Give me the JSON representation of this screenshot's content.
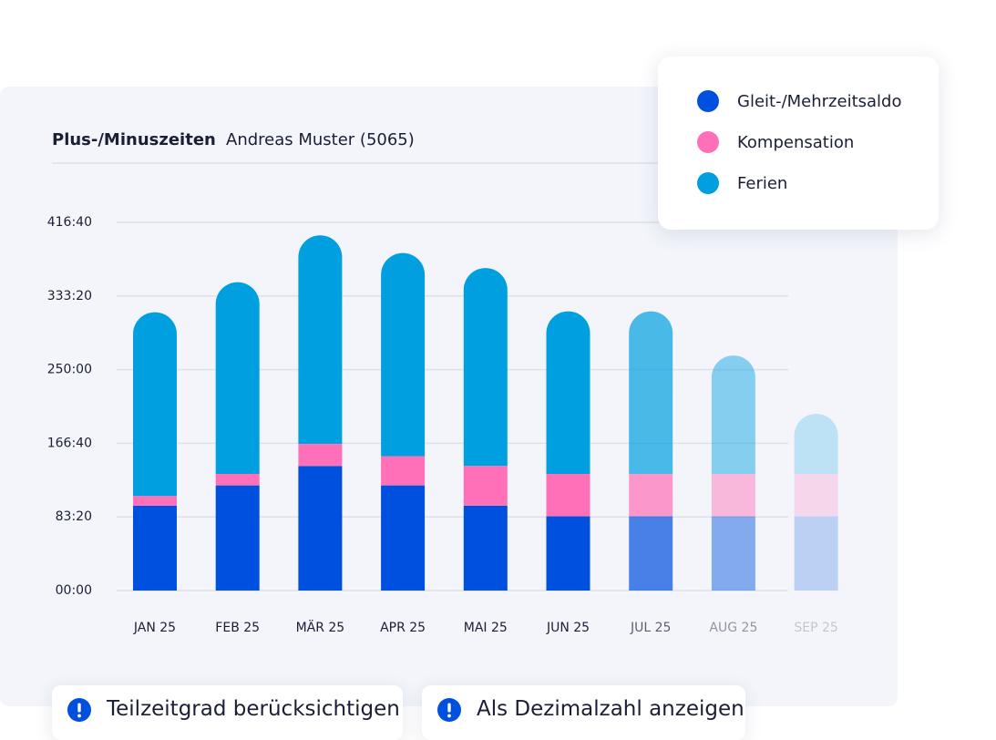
{
  "header": {
    "title": "Plus-/Minuszeiten",
    "person": "Andreas Muster (5065)"
  },
  "chart_data": {
    "type": "stacked_bar",
    "categories": [
      "JAN 25",
      "FEB 25",
      "MÄR 25",
      "APR 25",
      "MAI 25",
      "JUN 25",
      "JUL 25",
      "AUG 25",
      "SEP 25"
    ],
    "series": [
      {
        "name": "Gleit-/Mehrzeitsaldo",
        "color": "#0050e0",
        "values": [
          96,
          119,
          141,
          119,
          96,
          84,
          84,
          84,
          84
        ]
      },
      {
        "name": "Kompensation",
        "color": "#ff70b8",
        "values": [
          11,
          13,
          25,
          33,
          45,
          48,
          48,
          48,
          48
        ]
      },
      {
        "name": "Ferien",
        "color": "#00a0e0",
        "values": [
          208,
          217,
          236,
          230,
          224,
          184,
          184,
          134,
          68
        ]
      }
    ],
    "ylim": [
      0,
      416.67
    ],
    "yticks": [
      {
        "value": 0,
        "label": "00:00"
      },
      {
        "value": 83.33,
        "label": "83:20"
      },
      {
        "value": 166.67,
        "label": "166:40"
      },
      {
        "value": 250,
        "label": "250:00"
      },
      {
        "value": 333.33,
        "label": "333:20"
      },
      {
        "value": 416.67,
        "label": "416:40"
      }
    ],
    "grid": true
  },
  "buttons": [
    "Teilzeitgrad berücksichtigen",
    "Als Dezimalzahl anzeigen"
  ]
}
